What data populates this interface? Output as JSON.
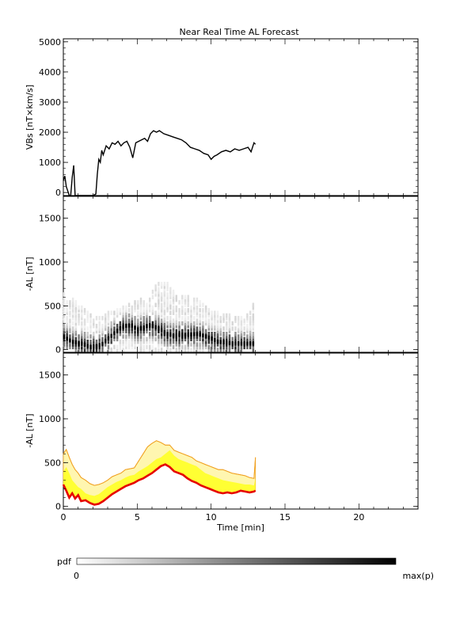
{
  "title": "Near Real Time AL Forecast",
  "colorbar": {
    "label": "pdf",
    "min_label": "0",
    "max_label": "max(p)"
  },
  "colors": {
    "line": "#000000",
    "median": "#e60000",
    "band_inner": "#ffff33",
    "band_outer": "#fff6b0",
    "band_edge": "#f0a020"
  },
  "chart_data": [
    {
      "type": "line",
      "panel": "top",
      "ylabel": "VBs [nT×km/s]",
      "ylim": [
        -100,
        5100
      ],
      "xlim": [
        0,
        24
      ],
      "yticks": [
        "0",
        "1000",
        "2000",
        "3000",
        "4000",
        "5000"
      ],
      "series": [
        {
          "x": [
            0,
            0.1,
            0.2,
            0.3,
            0.4,
            0.5,
            0.6,
            0.7,
            0.8,
            0.9,
            1.0,
            1.5,
            2.0,
            2.2,
            2.3,
            2.4,
            2.5,
            2.6,
            2.7,
            2.9,
            3.1,
            3.3,
            3.5,
            3.7,
            3.9,
            4.1,
            4.3,
            4.5,
            4.7,
            4.9,
            5.1,
            5.3,
            5.5,
            5.7,
            5.9,
            6.1,
            6.3,
            6.5,
            6.8,
            7.1,
            7.4,
            7.7,
            8.0,
            8.3,
            8.6,
            8.9,
            9.2,
            9.5,
            9.8,
            10.0,
            10.2,
            10.4,
            10.7,
            11.0,
            11.3,
            11.6,
            11.9,
            12.2,
            12.5,
            12.7,
            12.9,
            13.0
          ],
          "values": [
            400,
            550,
            200,
            50,
            -100,
            -100,
            500,
            900,
            -100,
            -100,
            -100,
            -100,
            -100,
            -50,
            600,
            1100,
            1000,
            1400,
            1250,
            1550,
            1450,
            1650,
            1600,
            1700,
            1550,
            1650,
            1700,
            1500,
            1150,
            1650,
            1700,
            1750,
            1800,
            1700,
            1950,
            2050,
            2000,
            2050,
            1950,
            1900,
            1850,
            1800,
            1750,
            1650,
            1500,
            1450,
            1400,
            1300,
            1250,
            1100,
            1200,
            1250,
            1350,
            1400,
            1350,
            1450,
            1400,
            1450,
            1500,
            1350,
            1650,
            1600
          ]
        }
      ]
    },
    {
      "type": "heatmap",
      "panel": "middle",
      "ylabel": "-AL [nT]",
      "ylim": [
        -30,
        1750
      ],
      "xlim": [
        0,
        24
      ],
      "yticks": [
        "0",
        "500",
        "1000",
        "1500"
      ],
      "colorscale": "white to black (pdf, 0 to max(p))",
      "mode_path": {
        "x": [
          0,
          0.3,
          0.6,
          1.0,
          1.4,
          1.8,
          2.2,
          2.6,
          3.0,
          3.4,
          3.8,
          4.2,
          4.6,
          5.0,
          5.4,
          5.8,
          6.2,
          6.6,
          7.0,
          7.5,
          8.0,
          8.5,
          9.0,
          9.5,
          10.0,
          10.5,
          11.0,
          11.5,
          12.0,
          12.5,
          13.0
        ],
        "values": [
          150,
          120,
          90,
          80,
          60,
          30,
          40,
          60,
          120,
          180,
          240,
          270,
          280,
          230,
          250,
          280,
          260,
          230,
          180,
          160,
          170,
          170,
          180,
          160,
          130,
          90,
          80,
          70,
          70,
          70,
          70
        ]
      },
      "upper_envelope": {
        "x": [
          0,
          0.5,
          1.0,
          1.5,
          2.0,
          2.5,
          3.0,
          3.5,
          4.0,
          4.5,
          5.0,
          5.5,
          6.0,
          6.5,
          7.0,
          7.5,
          8.0,
          8.5,
          9.0,
          9.5,
          10.0,
          10.5,
          11.0,
          11.5,
          12.0,
          12.5,
          13.0
        ],
        "values": [
          650,
          600,
          520,
          450,
          380,
          380,
          420,
          450,
          480,
          520,
          560,
          600,
          680,
          760,
          780,
          650,
          620,
          600,
          580,
          520,
          450,
          420,
          400,
          380,
          380,
          400,
          560
        ]
      }
    },
    {
      "type": "area",
      "panel": "bottom",
      "xlabel": "Time [min]",
      "ylabel": "-AL [nT]",
      "ylim": [
        -30,
        1750
      ],
      "xlim": [
        0,
        24
      ],
      "xticks": [
        "0",
        "5",
        "10",
        "15",
        "20"
      ],
      "yticks": [
        "0",
        "500",
        "1000",
        "1500"
      ],
      "x": [
        0,
        0.2,
        0.4,
        0.6,
        0.8,
        1.0,
        1.2,
        1.5,
        1.8,
        2.1,
        2.4,
        2.7,
        3.0,
        3.3,
        3.6,
        3.9,
        4.2,
        4.5,
        4.8,
        5.1,
        5.4,
        5.7,
        6.0,
        6.3,
        6.6,
        6.9,
        7.2,
        7.5,
        7.8,
        8.1,
        8.4,
        8.7,
        9.0,
        9.3,
        9.6,
        9.9,
        10.2,
        10.5,
        10.8,
        11.1,
        11.4,
        11.7,
        12.0,
        12.3,
        12.6,
        12.9,
        13.0
      ],
      "series": [
        {
          "name": "upper",
          "values": [
            600,
            650,
            560,
            480,
            420,
            380,
            330,
            300,
            260,
            240,
            250,
            270,
            300,
            340,
            360,
            380,
            420,
            430,
            440,
            520,
            600,
            680,
            720,
            750,
            730,
            700,
            700,
            640,
            620,
            600,
            580,
            560,
            520,
            500,
            480,
            460,
            440,
            420,
            420,
            400,
            380,
            370,
            360,
            350,
            330,
            320,
            560
          ]
        },
        {
          "name": "inner",
          "values": [
            400,
            450,
            380,
            300,
            260,
            220,
            200,
            150,
            130,
            120,
            140,
            180,
            220,
            250,
            280,
            300,
            330,
            350,
            360,
            400,
            430,
            460,
            500,
            540,
            560,
            600,
            640,
            580,
            540,
            520,
            500,
            480,
            460,
            420,
            380,
            360,
            340,
            320,
            300,
            290,
            280,
            270,
            260,
            250,
            250,
            240,
            320
          ]
        },
        {
          "name": "median",
          "values": [
            250,
            180,
            100,
            150,
            90,
            130,
            60,
            70,
            40,
            20,
            30,
            60,
            100,
            140,
            170,
            200,
            230,
            250,
            270,
            300,
            320,
            350,
            380,
            420,
            460,
            480,
            450,
            400,
            380,
            360,
            320,
            290,
            270,
            240,
            220,
            200,
            180,
            160,
            150,
            160,
            150,
            160,
            180,
            170,
            160,
            170,
            180
          ]
        }
      ]
    }
  ]
}
